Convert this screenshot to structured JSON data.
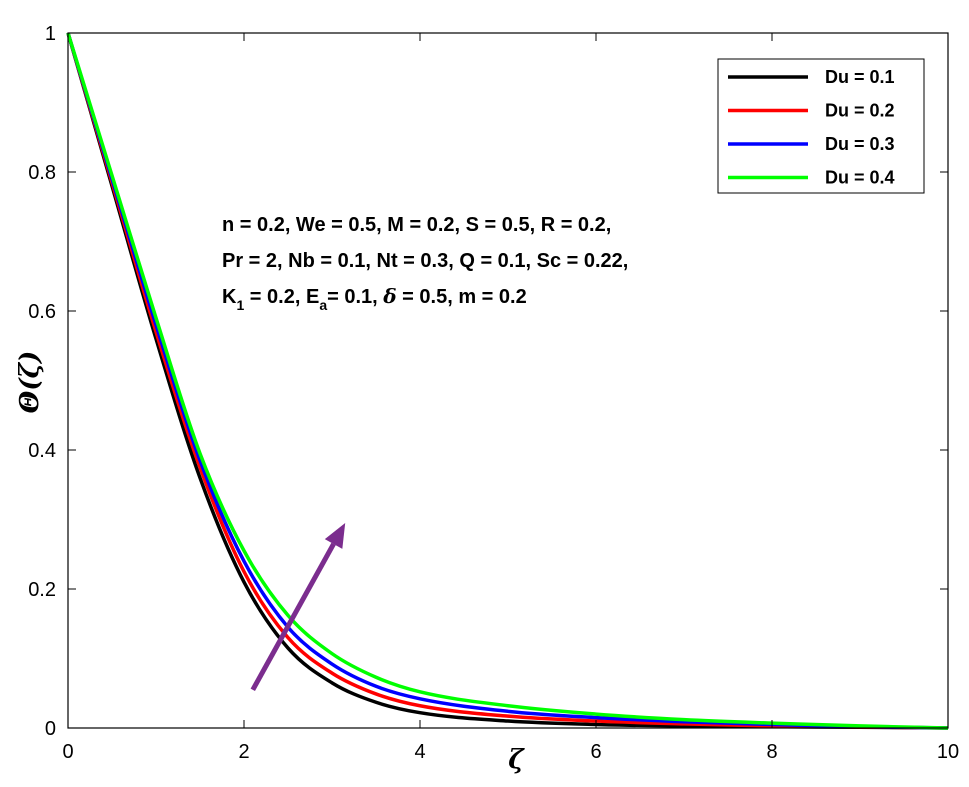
{
  "chart_data": {
    "type": "line",
    "title": "",
    "xlabel": "ζ",
    "ylabel": "Θ(ζ)",
    "xlim": [
      0,
      10
    ],
    "ylim": [
      0,
      1
    ],
    "xticks": [
      0,
      2,
      4,
      6,
      8,
      10
    ],
    "yticks": [
      0,
      0.2,
      0.4,
      0.6,
      0.8,
      1
    ],
    "xtick_labels": [
      "0",
      "2",
      "4",
      "6",
      "8",
      "10"
    ],
    "ytick_labels": [
      "0",
      "0.2",
      "0.4",
      "0.6",
      "0.8",
      "1"
    ],
    "grid": false,
    "legend_position": "top-right",
    "x": [
      0,
      0.5,
      1,
      1.5,
      2,
      2.5,
      3,
      3.5,
      4,
      5,
      6,
      7,
      8,
      9,
      10
    ],
    "series": [
      {
        "name": "Du = 0.1",
        "color": "#000000",
        "values": [
          1.0,
          0.78,
          0.56,
          0.36,
          0.21,
          0.115,
          0.065,
          0.037,
          0.022,
          0.01,
          0.005,
          0.003,
          0.002,
          0.001,
          0.0
        ]
      },
      {
        "name": "Du = 0.2",
        "color": "#ff0000",
        "values": [
          1.0,
          0.785,
          0.57,
          0.375,
          0.225,
          0.13,
          0.079,
          0.049,
          0.032,
          0.017,
          0.01,
          0.006,
          0.003,
          0.0015,
          0.0
        ]
      },
      {
        "name": "Du = 0.3",
        "color": "#0000ff",
        "values": [
          1.0,
          0.79,
          0.58,
          0.385,
          0.24,
          0.145,
          0.092,
          0.06,
          0.042,
          0.024,
          0.015,
          0.009,
          0.005,
          0.002,
          0.0
        ]
      },
      {
        "name": "Du = 0.4",
        "color": "#00ff00",
        "values": [
          1.0,
          0.795,
          0.59,
          0.395,
          0.255,
          0.162,
          0.107,
          0.073,
          0.052,
          0.032,
          0.02,
          0.012,
          0.007,
          0.003,
          0.0
        ]
      }
    ],
    "annotation": {
      "line1": "n = 0.2, We = 0.5, M = 0.2, S = 0.5, R = 0.2,",
      "line2": "Pr = 2, Nb = 0.1, Nt = 0.3, Q = 0.1, Sc = 0.22,",
      "line3": {
        "k": "K",
        "k_sub": "1",
        "k_rest": " = 0.2, E",
        "e_sub": "a",
        "e_rest": "= 0.1, ",
        "delta": "δ",
        "tail": " = 0.5, m = 0.2"
      }
    },
    "arrow": {
      "from": [
        2.1,
        0.055
      ],
      "to": [
        3.15,
        0.295
      ],
      "color": "#7b2d8e"
    }
  }
}
